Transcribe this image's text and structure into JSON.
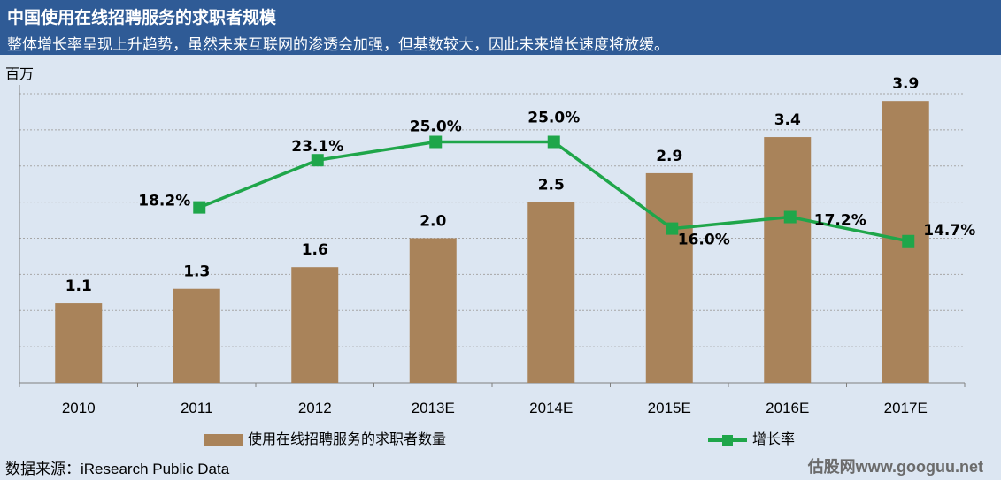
{
  "header": {
    "title": "中国使用在线招聘服务的求职者规模",
    "subtitle": "整体增长率呈现上升趋势，虽然未来互联网的渗透会加强，但基数较大，因此未来增长速度将放缓。"
  },
  "unit_label": "百万",
  "footer": {
    "source": "数据来源：iResearch Public Data",
    "watermark": "估股网www.googuu.net"
  },
  "colors": {
    "bar": "#A9835A",
    "line": "#1FA64A",
    "header_bg": "#2F5B96",
    "page_bg": "#DCE6F2"
  },
  "chart_data": {
    "type": "bar",
    "categories": [
      "2010",
      "2011",
      "2012",
      "2013E",
      "2014E",
      "2015E",
      "2016E",
      "2017E"
    ],
    "series": [
      {
        "name": "使用在线招聘服务的求职者数量",
        "type": "bar",
        "values": [
          1.1,
          1.3,
          1.6,
          2.0,
          2.5,
          2.9,
          3.4,
          3.9
        ],
        "labels": [
          "1.1",
          "1.3",
          "1.6",
          "2.0",
          "2.5",
          "2.9",
          "3.4",
          "3.9"
        ]
      },
      {
        "name": "增长率",
        "type": "line",
        "values": [
          null,
          18.2,
          23.1,
          25.0,
          25.0,
          16.0,
          17.2,
          14.7
        ],
        "labels": [
          "",
          "18.2%",
          "23.1%",
          "25.0%",
          "25.0%",
          "16.0%",
          "17.2%",
          "14.7%"
        ]
      }
    ],
    "ylim": [
      0,
      4.0
    ],
    "y2lim": [
      0,
      30
    ],
    "grid": true,
    "legend_position": "bottom"
  }
}
